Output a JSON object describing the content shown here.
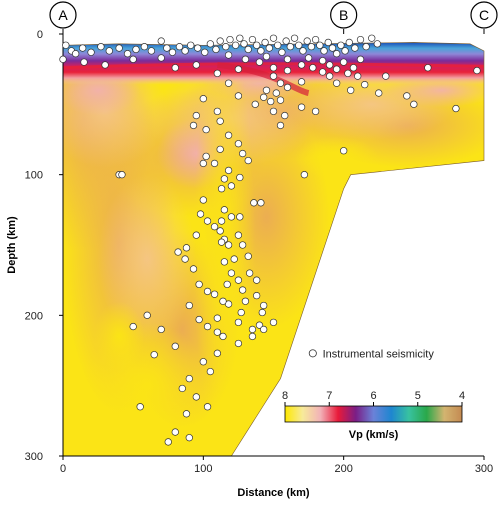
{
  "chart_data": {
    "type": "heatmap",
    "x_label": "Distance (km)",
    "y_label": "Depth (km)",
    "xlim": [
      0,
      300
    ],
    "ylim": [
      0,
      300
    ],
    "y_inverted": true,
    "x_ticks": [
      "0",
      "100",
      "200",
      "300"
    ],
    "y_ticks": [
      "0",
      "100",
      "200",
      "300"
    ],
    "x_tick_values": [
      0,
      100,
      200,
      300
    ],
    "y_tick_values": [
      0,
      100,
      200,
      300
    ],
    "profile_markers": [
      {
        "label": "A",
        "x": 0
      },
      {
        "label": "B",
        "x": 200
      },
      {
        "label": "C",
        "x": 300
      }
    ],
    "legend_label": "Instrumental seismicity",
    "colorbar": {
      "title": "Vp (km/s)",
      "ticks": [
        "8",
        "7",
        "6",
        "5",
        "4"
      ],
      "tick_values": [
        8,
        7,
        6,
        5,
        4
      ],
      "colors": [
        "#fde800",
        "#f7ea9a",
        "#f2b2b8",
        "#e81a3a",
        "#7a1e86",
        "#6a82d8",
        "#1e86d0",
        "#38c2a0",
        "#2aa84a",
        "#d3b470",
        "#c48a52"
      ]
    },
    "model_outline": [
      [
        0,
        8
      ],
      [
        40,
        7
      ],
      [
        100,
        8
      ],
      [
        180,
        7
      ],
      [
        250,
        6
      ],
      [
        290,
        7
      ],
      [
        300,
        12
      ],
      [
        300,
        90
      ],
      [
        205,
        100
      ],
      [
        200,
        110
      ],
      [
        155,
        245
      ],
      [
        120,
        300
      ],
      [
        0,
        300
      ]
    ],
    "seismicity": [
      [
        2,
        8
      ],
      [
        6,
        12
      ],
      [
        9,
        14
      ],
      [
        14,
        10
      ],
      [
        20,
        13
      ],
      [
        27,
        9
      ],
      [
        33,
        12
      ],
      [
        40,
        10
      ],
      [
        46,
        14
      ],
      [
        52,
        11
      ],
      [
        58,
        9
      ],
      [
        63,
        12
      ],
      [
        70,
        5
      ],
      [
        74,
        10
      ],
      [
        78,
        13
      ],
      [
        83,
        9
      ],
      [
        87,
        12
      ],
      [
        91,
        8
      ],
      [
        96,
        10
      ],
      [
        101,
        13
      ],
      [
        105,
        7
      ],
      [
        109,
        11
      ],
      [
        112,
        5
      ],
      [
        116,
        9
      ],
      [
        119,
        4
      ],
      [
        123,
        8
      ],
      [
        126,
        3
      ],
      [
        129,
        7
      ],
      [
        132,
        11
      ],
      [
        135,
        4
      ],
      [
        138,
        8
      ],
      [
        141,
        12
      ],
      [
        144,
        6
      ],
      [
        147,
        10
      ],
      [
        150,
        3
      ],
      [
        153,
        8
      ],
      [
        156,
        13
      ],
      [
        159,
        5
      ],
      [
        162,
        9
      ],
      [
        165,
        3
      ],
      [
        168,
        8
      ],
      [
        171,
        12
      ],
      [
        174,
        5
      ],
      [
        177,
        9
      ],
      [
        180,
        4
      ],
      [
        183,
        8
      ],
      [
        186,
        12
      ],
      [
        189,
        6
      ],
      [
        192,
        10
      ],
      [
        195,
        14
      ],
      [
        198,
        8
      ],
      [
        201,
        12
      ],
      [
        204,
        6
      ],
      [
        208,
        10
      ],
      [
        212,
        4
      ],
      [
        216,
        9
      ],
      [
        220,
        3
      ],
      [
        224,
        7
      ],
      [
        118,
        15
      ],
      [
        130,
        18
      ],
      [
        145,
        16
      ],
      [
        160,
        18
      ],
      [
        175,
        17
      ],
      [
        185,
        19
      ],
      [
        190,
        22
      ],
      [
        195,
        25
      ],
      [
        200,
        20
      ],
      [
        203,
        28
      ],
      [
        207,
        24
      ],
      [
        210,
        30
      ],
      [
        212,
        18
      ],
      [
        185,
        27
      ],
      [
        178,
        24
      ],
      [
        170,
        22
      ],
      [
        140,
        20
      ],
      [
        150,
        24
      ],
      [
        160,
        26
      ],
      [
        0,
        18
      ],
      [
        15,
        20
      ],
      [
        30,
        22
      ],
      [
        50,
        18
      ],
      [
        70,
        17
      ],
      [
        80,
        24
      ],
      [
        95,
        22
      ],
      [
        110,
        28
      ],
      [
        125,
        25
      ],
      [
        150,
        30
      ],
      [
        155,
        35
      ],
      [
        230,
        30
      ],
      [
        260,
        24
      ],
      [
        295,
        26
      ],
      [
        145,
        40
      ],
      [
        152,
        42
      ],
      [
        148,
        48
      ],
      [
        143,
        45
      ],
      [
        155,
        47
      ],
      [
        160,
        38
      ],
      [
        170,
        34
      ],
      [
        190,
        30
      ],
      [
        195,
        35
      ],
      [
        205,
        40
      ],
      [
        215,
        36
      ],
      [
        225,
        42
      ],
      [
        245,
        44
      ],
      [
        118,
        35
      ],
      [
        125,
        44
      ],
      [
        137,
        50
      ],
      [
        150,
        55
      ],
      [
        158,
        58
      ],
      [
        155,
        65
      ],
      [
        170,
        52
      ],
      [
        180,
        55
      ],
      [
        250,
        50
      ],
      [
        280,
        53
      ],
      [
        100,
        46
      ],
      [
        110,
        55
      ],
      [
        95,
        58
      ],
      [
        93,
        65
      ],
      [
        102,
        68
      ],
      [
        112,
        62
      ],
      [
        118,
        72
      ],
      [
        125,
        78
      ],
      [
        112,
        82
      ],
      [
        102,
        87
      ],
      [
        100,
        92
      ],
      [
        108,
        92
      ],
      [
        118,
        97
      ],
      [
        126,
        102
      ],
      [
        132,
        90
      ],
      [
        128,
        85
      ],
      [
        115,
        103
      ],
      [
        120,
        108
      ],
      [
        113,
        110
      ],
      [
        40,
        100
      ],
      [
        172,
        100
      ],
      [
        200,
        83
      ],
      [
        115,
        125
      ],
      [
        113,
        133
      ],
      [
        108,
        137
      ],
      [
        112,
        140
      ],
      [
        120,
        130
      ],
      [
        126,
        130
      ],
      [
        136,
        120
      ],
      [
        141,
        120
      ],
      [
        115,
        146
      ],
      [
        125,
        143
      ],
      [
        118,
        150
      ],
      [
        113,
        148
      ],
      [
        122,
        160
      ],
      [
        128,
        150
      ],
      [
        132,
        158
      ],
      [
        115,
        162
      ],
      [
        120,
        170
      ],
      [
        125,
        175
      ],
      [
        133,
        170
      ],
      [
        138,
        175
      ],
      [
        117,
        178
      ],
      [
        128,
        182
      ],
      [
        130,
        190
      ],
      [
        138,
        186
      ],
      [
        143,
        193
      ],
      [
        142,
        198
      ],
      [
        127,
        198
      ],
      [
        118,
        192
      ],
      [
        110,
        202
      ],
      [
        125,
        205
      ],
      [
        135,
        210
      ],
      [
        140,
        207
      ],
      [
        100,
        118
      ],
      [
        98,
        128
      ],
      [
        103,
        133
      ],
      [
        95,
        143
      ],
      [
        88,
        152
      ],
      [
        82,
        155
      ],
      [
        87,
        160
      ],
      [
        93,
        167
      ],
      [
        97,
        178
      ],
      [
        103,
        183
      ],
      [
        108,
        185
      ],
      [
        114,
        190
      ],
      [
        90,
        193
      ],
      [
        97,
        203
      ],
      [
        103,
        208
      ],
      [
        110,
        212
      ],
      [
        114,
        215
      ],
      [
        135,
        215
      ],
      [
        143,
        210
      ],
      [
        150,
        205
      ],
      [
        125,
        220
      ],
      [
        110,
        227
      ],
      [
        100,
        233
      ],
      [
        105,
        240
      ],
      [
        90,
        245
      ],
      [
        85,
        252
      ],
      [
        95,
        258
      ],
      [
        103,
        265
      ],
      [
        88,
        270
      ],
      [
        80,
        283
      ],
      [
        75,
        290
      ],
      [
        90,
        287
      ],
      [
        60,
        200
      ],
      [
        50,
        208
      ],
      [
        70,
        210
      ],
      [
        80,
        222
      ],
      [
        65,
        228
      ],
      [
        55,
        265
      ],
      [
        42,
        100
      ]
    ]
  }
}
